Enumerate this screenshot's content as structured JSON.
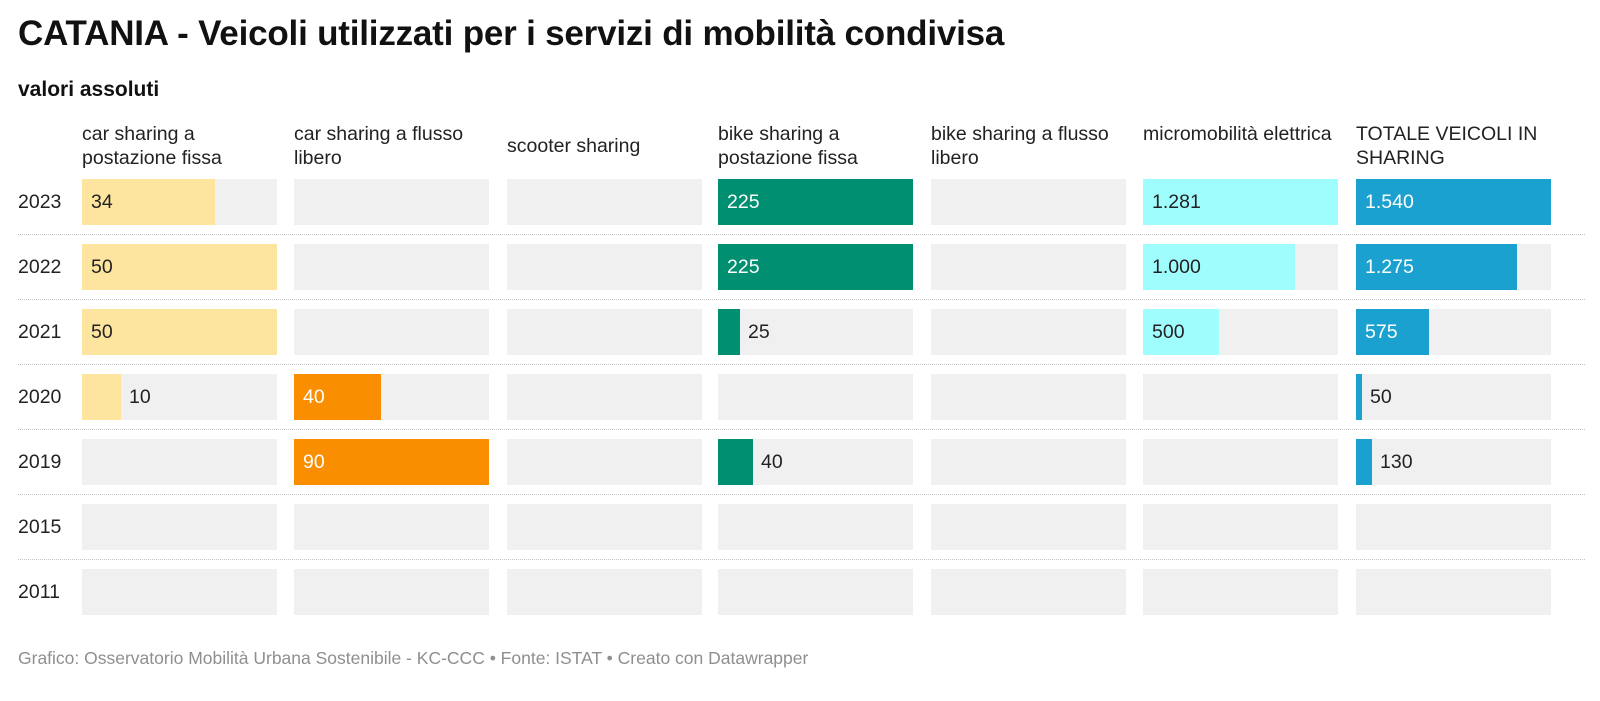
{
  "chart_data": {
    "type": "table",
    "title": "CATANIA - Veicoli utilizzati per i servizi di mobilità condivisa",
    "subtitle": "valori assoluti",
    "rows": [
      "2023",
      "2022",
      "2021",
      "2020",
      "2019",
      "2015",
      "2011"
    ],
    "columns": [
      {
        "name": "car sharing a postazione fissa",
        "color": "#fde59f",
        "max": 50,
        "values": [
          34,
          50,
          50,
          10,
          null,
          null,
          null
        ],
        "labels": [
          "34",
          "50",
          "50",
          "10",
          "",
          "",
          ""
        ]
      },
      {
        "name": "car sharing a flusso libero",
        "color": "#f88e00",
        "max": 90,
        "values": [
          null,
          null,
          null,
          40,
          90,
          null,
          null
        ],
        "labels": [
          "",
          "",
          "",
          "40",
          "90",
          "",
          ""
        ]
      },
      {
        "name": "scooter sharing",
        "color": "#cccccc",
        "max": 1,
        "values": [
          null,
          null,
          null,
          null,
          null,
          null,
          null
        ],
        "labels": [
          "",
          "",
          "",
          "",
          "",
          "",
          ""
        ]
      },
      {
        "name": "bike sharing a postazione fissa",
        "color": "#008f70",
        "max": 225,
        "values": [
          225,
          225,
          25,
          null,
          40,
          null,
          null
        ],
        "labels": [
          "225",
          "225",
          "25",
          "",
          "40",
          "",
          ""
        ]
      },
      {
        "name": "bike sharing a flusso libero",
        "color": "#cccccc",
        "max": 1,
        "values": [
          null,
          null,
          null,
          null,
          null,
          null,
          null
        ],
        "labels": [
          "",
          "",
          "",
          "",
          "",
          "",
          ""
        ]
      },
      {
        "name": "micromobilità elettrica",
        "color": "#a0fdfd",
        "max": 1281,
        "values": [
          1281,
          1000,
          500,
          null,
          null,
          null,
          null
        ],
        "labels": [
          "1.281",
          "1.000",
          "500",
          "",
          "",
          "",
          ""
        ]
      },
      {
        "name": "TOTALE VEICOLI IN SHARING",
        "color": "#1ba1cf",
        "max": 1540,
        "values": [
          1540,
          1275,
          575,
          50,
          130,
          null,
          null
        ],
        "labels": [
          "1.540",
          "1.275",
          "575",
          "50",
          "130",
          "",
          ""
        ]
      }
    ]
  },
  "footer": "Grafico: Osservatorio Mobilità Urbana Sostenibile - KC-CCC • Fonte: ISTAT • Creato con Datawrapper"
}
